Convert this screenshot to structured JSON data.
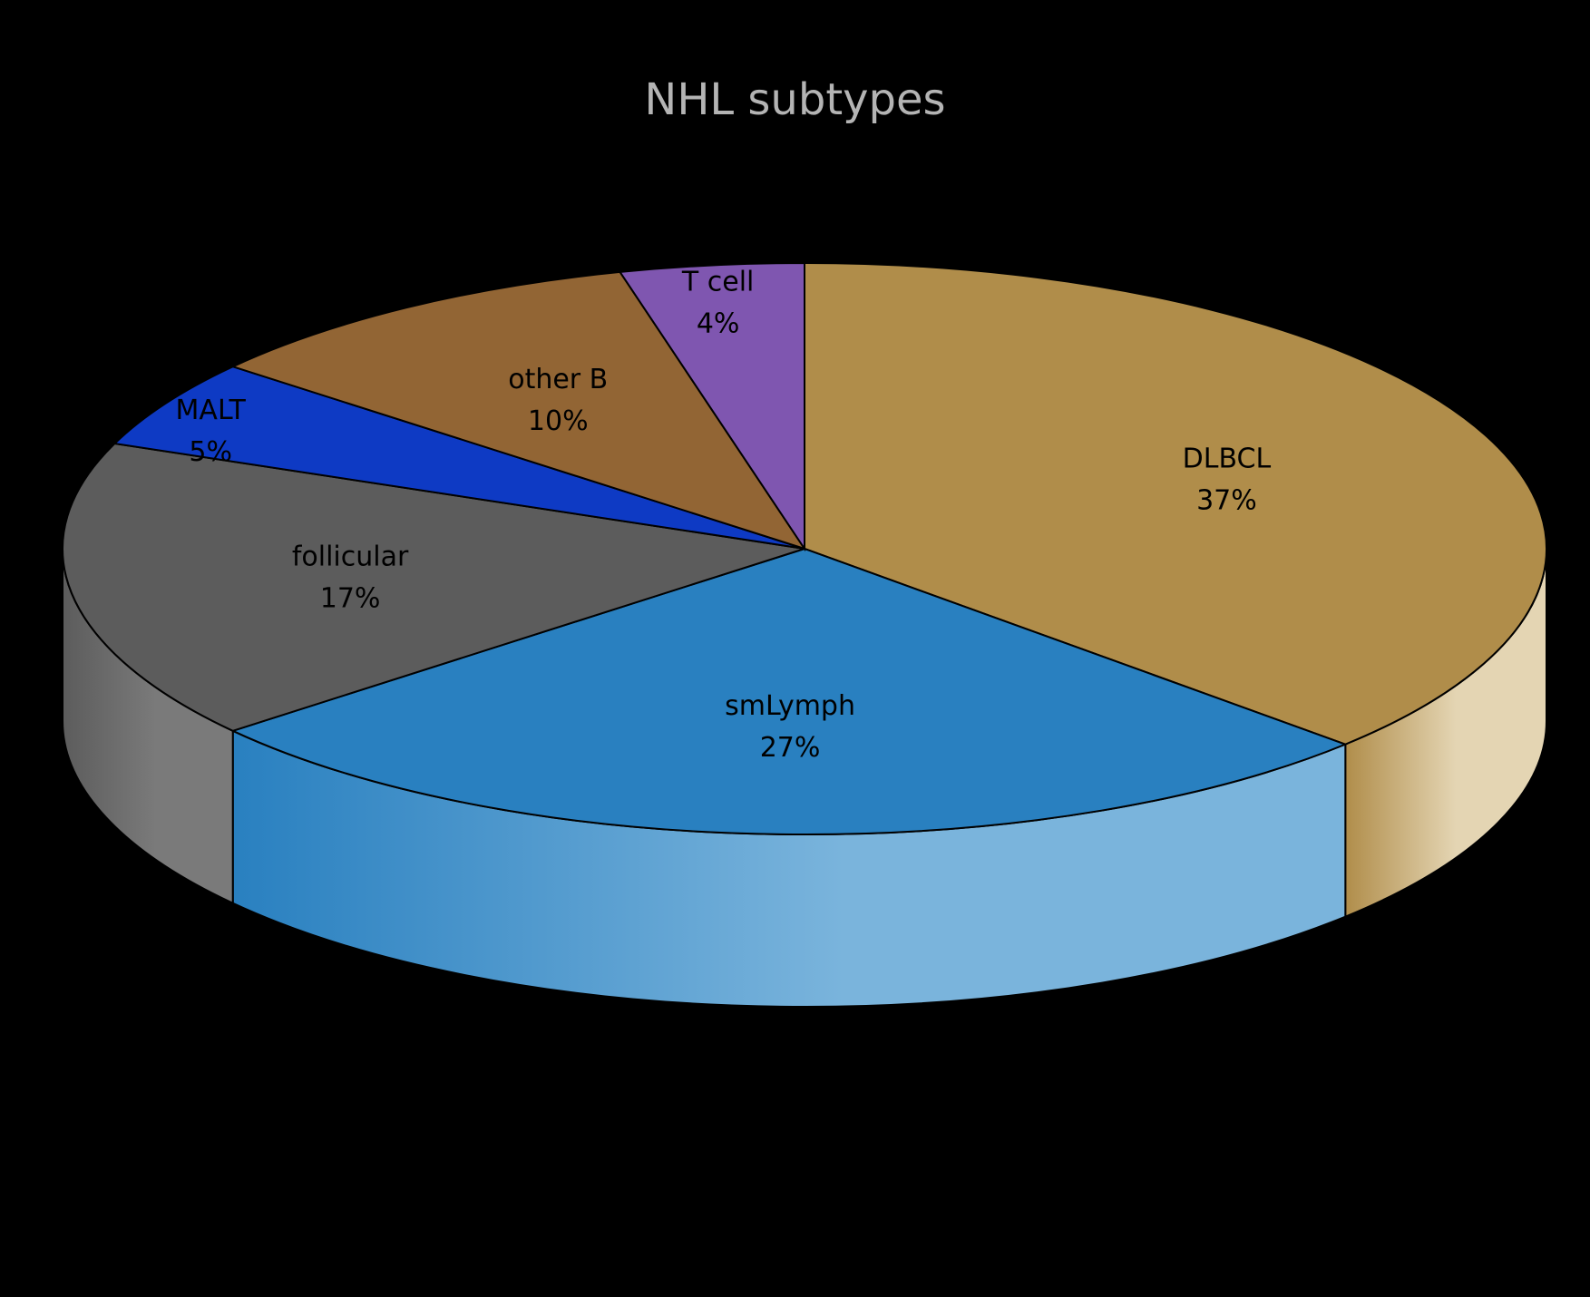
{
  "chart_data": {
    "type": "pie",
    "title": "NHL subtypes",
    "style": "3d",
    "slices": [
      {
        "label": "DLBCL",
        "value": 37,
        "display": "37%",
        "color": "#b08d4a",
        "side_color": "#e4d5b3"
      },
      {
        "label": "smLymph",
        "value": 27,
        "display": "27%",
        "color": "#2980c0",
        "side_color": "#7ab4dc"
      },
      {
        "label": "follicular",
        "value": 17,
        "display": "17%",
        "color": "#5c5c5c",
        "side_color": "#7a7a7a"
      },
      {
        "label": "MALT",
        "value": 5,
        "display": "5%",
        "color": "#0e3ac4",
        "side_color": "#0a2a90"
      },
      {
        "label": "other B",
        "value": 10,
        "display": "10%",
        "color": "#926534",
        "side_color": "#6e4a24"
      },
      {
        "label": "T cell",
        "value": 4,
        "display": "4%",
        "color": "#7f56b0",
        "side_color": "#5e3f84"
      }
    ],
    "background": "#000000",
    "title_color": "#b4b4b4"
  }
}
